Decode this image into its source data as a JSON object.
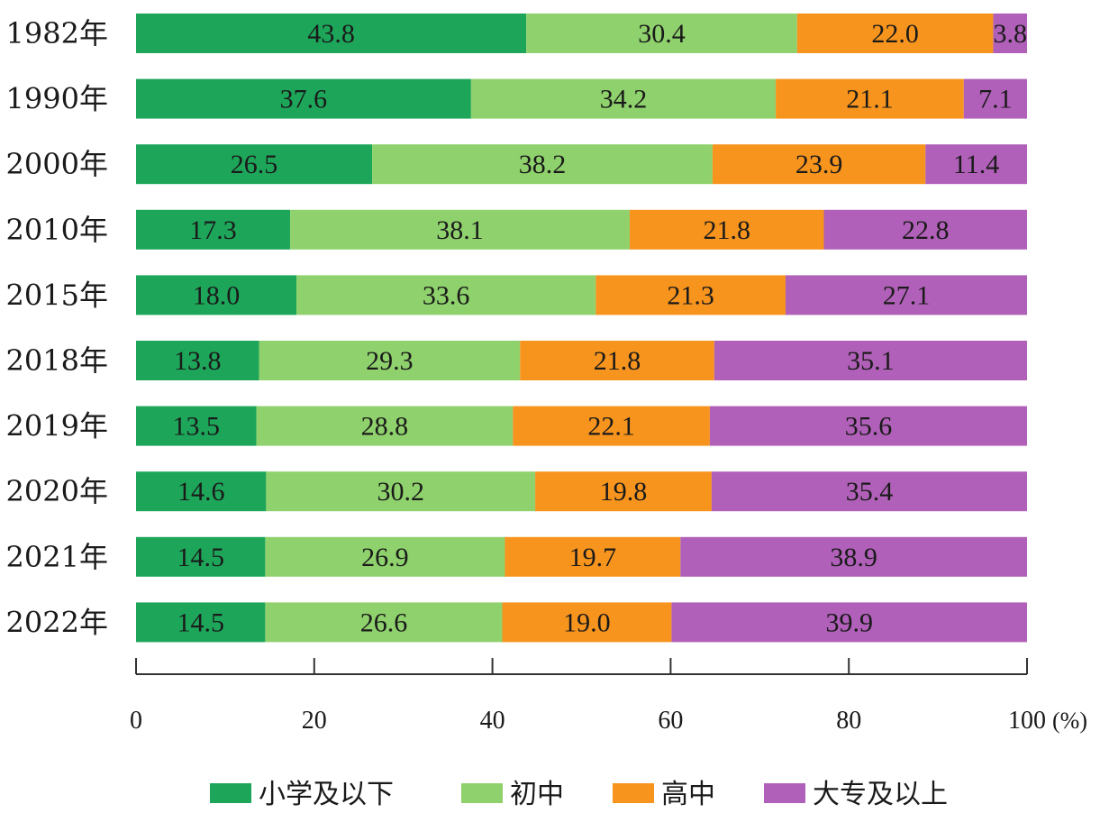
{
  "chart_data": {
    "type": "bar",
    "orientation": "horizontal",
    "stacked": true,
    "categories": [
      "1982年",
      "1990年",
      "2000年",
      "2010年",
      "2015年",
      "2018年",
      "2019年",
      "2020年",
      "2021年",
      "2022年"
    ],
    "series": [
      {
        "name": "小学及以下",
        "color": "#1da65a",
        "values": [
          43.8,
          37.6,
          26.5,
          17.3,
          18.0,
          13.8,
          13.5,
          14.6,
          14.5,
          14.5
        ]
      },
      {
        "name": "初中",
        "color": "#8fd16c",
        "values": [
          30.4,
          34.2,
          38.2,
          38.1,
          33.6,
          29.3,
          28.8,
          30.2,
          26.9,
          26.6
        ]
      },
      {
        "name": "高中",
        "color": "#f7941d",
        "values": [
          22.0,
          21.1,
          23.9,
          21.8,
          21.3,
          21.8,
          22.1,
          19.8,
          19.7,
          19.0
        ]
      },
      {
        "name": "大专及以上",
        "color": "#b060b8",
        "values": [
          3.8,
          7.1,
          11.4,
          22.8,
          27.1,
          35.1,
          35.6,
          35.4,
          38.9,
          39.9
        ]
      }
    ],
    "xlim": [
      0,
      100
    ],
    "xticks": [
      0,
      20,
      40,
      60,
      80,
      100
    ],
    "x_unit": "(%)",
    "grid": false,
    "legend_position": "bottom"
  }
}
